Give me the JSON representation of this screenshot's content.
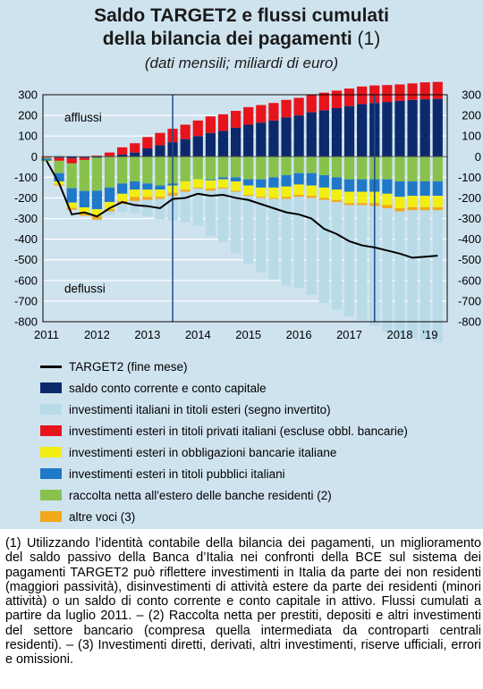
{
  "title_line1": "Saldo TARGET2 e flussi cumulati",
  "title_line2": "della bilancia dei pagamenti",
  "title_note": "(1)",
  "subtitle": "(dati mensili; miliardi di euro)",
  "footnote": "(1) Utilizzando l’identità contabile della bilancia dei pagamenti, un miglioramento del saldo passivo della Banca d’Italia nei confronti della BCE sul sistema dei pagamenti TARGET2 può riflettere investimenti in Italia da parte dei non residenti (maggiori passività), disinvestimenti di attività estere da parte dei residenti (minori attività) o un saldo di conto corrente e conto capitale in attivo. Flussi cumulati a partire da luglio 2011. – (2) Raccolta netta per prestiti, depositi e altri investimenti del settore bancario (compresa quella intermediata da controparti centrali residenti). – (3) Investimenti diretti, derivati, altri investimenti, riserve ufficiali, errori e omissioni.",
  "colors": {
    "background_panel": "#cfe3ef",
    "grid": "#ffffff",
    "vline": "#1e4f8c",
    "current_account": "#0c2a6b",
    "italian_foreign_securities": "#b9dbe8",
    "foreign_private_securities": "#e8141b",
    "foreign_bank_bonds": "#f2ee12",
    "foreign_public_securities": "#2079c8",
    "bank_net_funding": "#88c24c",
    "other_items": "#f2a81a",
    "target2_line": "#000000"
  },
  "chart_data": {
    "type": "bar",
    "stacked": true,
    "y_axis_left_ticks": [
      "300",
      "200",
      "100",
      "0",
      "-100",
      "-200",
      "-300",
      "-400",
      "-500",
      "-600",
      "-700",
      "-800"
    ],
    "y_axis_right_ticks": [
      "300",
      "200",
      "100",
      "0",
      "-100",
      "-200",
      "-300",
      "-400",
      "-500",
      "-600",
      "-700",
      "-800"
    ],
    "x_tick_labels": [
      "2011",
      "2012",
      "2013",
      "2014",
      "2015",
      "2016",
      "2017",
      "2018",
      "’19"
    ],
    "ylim": [
      -800,
      300
    ],
    "grid": true,
    "annotations": [
      "afflussi",
      "deflussi"
    ],
    "vertical_markers": [
      "2013-12",
      "2017-12"
    ],
    "months": [
      "2011-07",
      "2011-10",
      "2012-01",
      "2012-04",
      "2012-07",
      "2012-10",
      "2013-01",
      "2013-04",
      "2013-07",
      "2013-10",
      "2014-01",
      "2014-04",
      "2014-07",
      "2014-10",
      "2015-01",
      "2015-04",
      "2015-07",
      "2015-10",
      "2016-01",
      "2016-04",
      "2016-07",
      "2016-10",
      "2017-01",
      "2017-04",
      "2017-07",
      "2017-10",
      "2018-01",
      "2018-04",
      "2018-07",
      "2018-10",
      "2019-01",
      "2019-04"
    ],
    "series": [
      {
        "name": "saldo conto corrente e conto capitale",
        "key": "current_account",
        "values": [
          0,
          -5,
          -8,
          -6,
          -5,
          0,
          10,
          20,
          40,
          55,
          70,
          85,
          100,
          115,
          125,
          140,
          155,
          165,
          175,
          190,
          200,
          215,
          225,
          235,
          245,
          255,
          260,
          265,
          270,
          275,
          278,
          280
        ]
      },
      {
        "name": "investimenti esteri in titoli privati italiani (escluse obbl. bancarie)",
        "key": "foreign_private_securities",
        "values": [
          -5,
          -15,
          -25,
          -10,
          5,
          20,
          35,
          45,
          55,
          60,
          65,
          70,
          75,
          80,
          80,
          82,
          85,
          85,
          85,
          85,
          85,
          85,
          85,
          85,
          85,
          85,
          85,
          82,
          80,
          80,
          82,
          82
        ]
      },
      {
        "name": "raccolta netta all'estero delle banche residenti (2)",
        "key": "bank_net_funding",
        "values": [
          -5,
          -60,
          -120,
          -150,
          -160,
          -150,
          -130,
          -120,
          -130,
          -140,
          -130,
          -120,
          -110,
          -110,
          -100,
          -100,
          -110,
          -110,
          -100,
          -90,
          -80,
          -80,
          -90,
          -100,
          -110,
          -110,
          -110,
          -110,
          -120,
          -120,
          -120,
          -120
        ]
      },
      {
        "name": "investimenti esteri in titoli pubblici italiani",
        "key": "foreign_public_securities",
        "values": [
          -10,
          -40,
          -70,
          -80,
          -90,
          -70,
          -50,
          -40,
          -30,
          -20,
          -10,
          0,
          0,
          -5,
          -10,
          -20,
          -30,
          -40,
          -50,
          -55,
          -55,
          -60,
          -60,
          -60,
          -60,
          -60,
          -60,
          -70,
          -75,
          -70,
          -70,
          -70
        ]
      },
      {
        "name": "investimenti esteri in obbligazioni bancarie italiane",
        "key": "foreign_bank_bonds",
        "values": [
          -5,
          -15,
          -25,
          -30,
          -35,
          -35,
          -35,
          -35,
          -35,
          -35,
          -35,
          -40,
          -40,
          -40,
          -40,
          -45,
          -45,
          -45,
          -50,
          -50,
          -50,
          -50,
          -50,
          -50,
          -55,
          -55,
          -55,
          -55,
          -55,
          -55,
          -55,
          -55
        ]
      },
      {
        "name": "altre voci (3)",
        "key": "other_items",
        "values": [
          0,
          -5,
          -10,
          -10,
          -15,
          -10,
          -15,
          -20,
          -15,
          -10,
          -15,
          -10,
          -5,
          -10,
          -5,
          -5,
          -5,
          -5,
          -5,
          -10,
          -10,
          -10,
          -10,
          -10,
          -10,
          -10,
          -15,
          -15,
          -15,
          -15,
          -15,
          -15
        ]
      },
      {
        "name": "investimenti italiani in titoli esteri (segno invertito)",
        "key": "italian_foreign_securities",
        "values": [
          5,
          10,
          5,
          0,
          -5,
          -20,
          -40,
          -60,
          -80,
          -100,
          -120,
          -150,
          -180,
          -220,
          -260,
          -300,
          -330,
          -360,
          -390,
          -420,
          -440,
          -470,
          -500,
          -520,
          -540,
          -560,
          -580,
          -600,
          -610,
          -620,
          -630,
          -640
        ]
      }
    ],
    "line": {
      "name": "TARGET2 (fine mese)",
      "key": "target2_line",
      "values": [
        -20,
        -130,
        -280,
        -270,
        -290,
        -250,
        -220,
        -235,
        -240,
        -250,
        -205,
        -200,
        -180,
        -190,
        -185,
        -200,
        -210,
        -230,
        -250,
        -270,
        -280,
        -300,
        -350,
        -375,
        -410,
        -430,
        -440,
        -455,
        -470,
        -490,
        -485,
        -480
      ]
    }
  },
  "legend": [
    {
      "label": "TARGET2 (fine mese)",
      "kind": "line",
      "color": "#000000"
    },
    {
      "label": "saldo conto corrente e conto capitale",
      "kind": "box",
      "color": "#0c2a6b"
    },
    {
      "label": "investimenti italiani in titoli esteri (segno invertito)",
      "kind": "box",
      "color": "#b9dbe8"
    },
    {
      "label": "investimenti esteri in titoli privati italiani (escluse obbl. bancarie)",
      "kind": "box",
      "color": "#e8141b"
    },
    {
      "label": "investimenti esteri in obbligazioni bancarie italiane",
      "kind": "box",
      "color": "#f2ee12"
    },
    {
      "label": "investimenti esteri in titoli pubblici italiani",
      "kind": "box",
      "color": "#2079c8"
    },
    {
      "label": "raccolta netta all'estero delle banche residenti (2)",
      "kind": "box",
      "color": "#88c24c"
    },
    {
      "label": "altre voci (3)",
      "kind": "box",
      "color": "#f2a81a"
    }
  ]
}
